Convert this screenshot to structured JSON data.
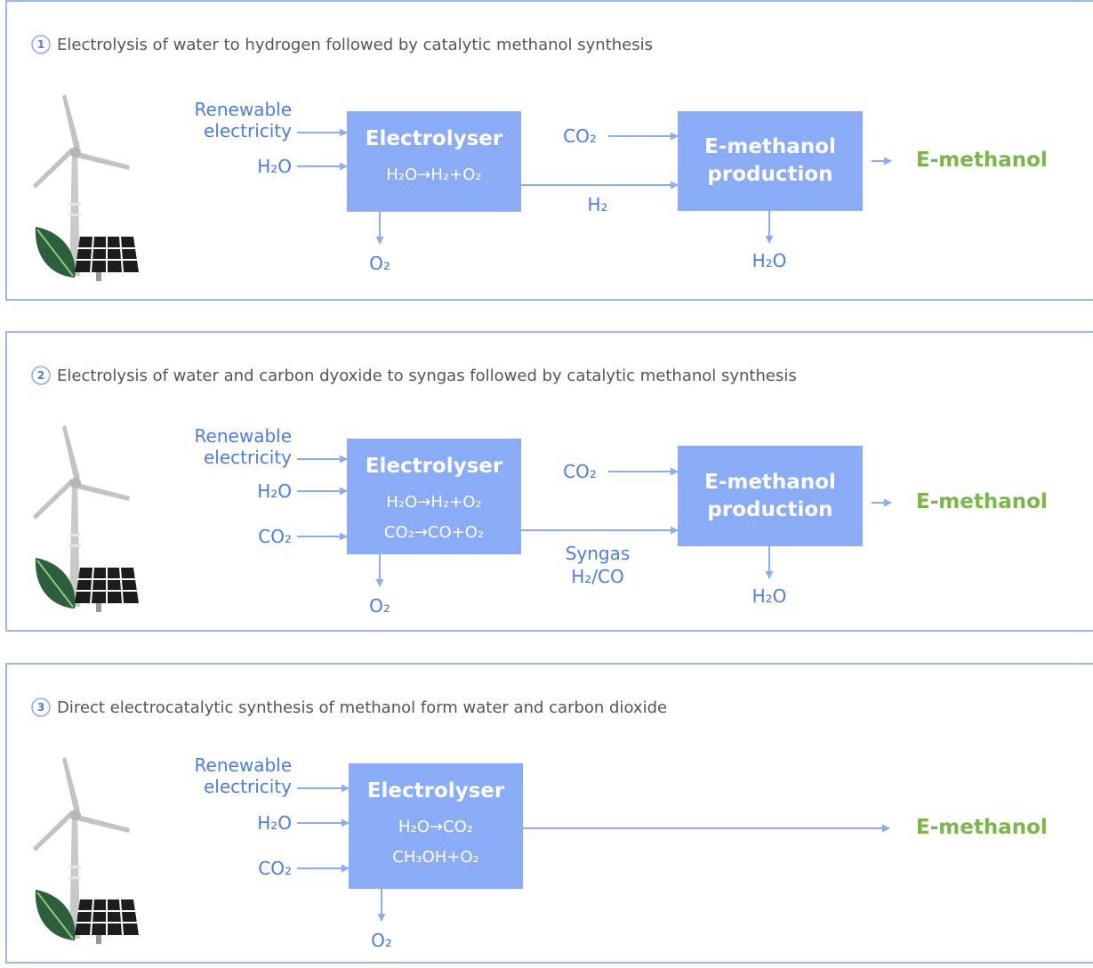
{
  "panels": [
    {
      "number": "1",
      "title": "Electrolysis of water to hydrogen followed by catalytic methanol synthesis",
      "inputs": [
        "Renewable electricity",
        "H₂O"
      ],
      "electrolyser": {
        "name": "Electrolyser",
        "reactions": [
          "H₂O→H₂+O₂"
        ]
      },
      "byproduct": "O₂",
      "intermediate": [
        "H₂"
      ],
      "co2_input": "CO₂",
      "reactor": "E-methanol production",
      "reactor_byproduct": "H₂O",
      "product": "E-methanol"
    },
    {
      "number": "2",
      "title": "Electrolysis of water and carbon dyoxide to syngas followed by catalytic methanol synthesis",
      "inputs": [
        "Renewable electricity",
        "H₂O",
        "CO₂"
      ],
      "electrolyser": {
        "name": "Electrolyser",
        "reactions": [
          "H₂O→H₂+O₂",
          "CO₂→CO+O₂"
        ]
      },
      "byproduct": "O₂",
      "intermediate": [
        "Syngas",
        "H₂/CO"
      ],
      "co2_input": "CO₂",
      "reactor": "E-methanol production",
      "reactor_byproduct": "H₂O",
      "product": "E-methanol"
    },
    {
      "number": "3",
      "title": "Direct electrocatalytic synthesis of methanol form water and carbon dioxide",
      "inputs": [
        "Renewable electricity",
        "H₂O",
        "CO₂"
      ],
      "electrolyser": {
        "name": "Electrolyser",
        "reactions": [
          "H₂O→CO₂",
          "CH₃OH+O₂"
        ]
      },
      "byproduct": "O₂",
      "product": "E-methanol"
    }
  ]
}
